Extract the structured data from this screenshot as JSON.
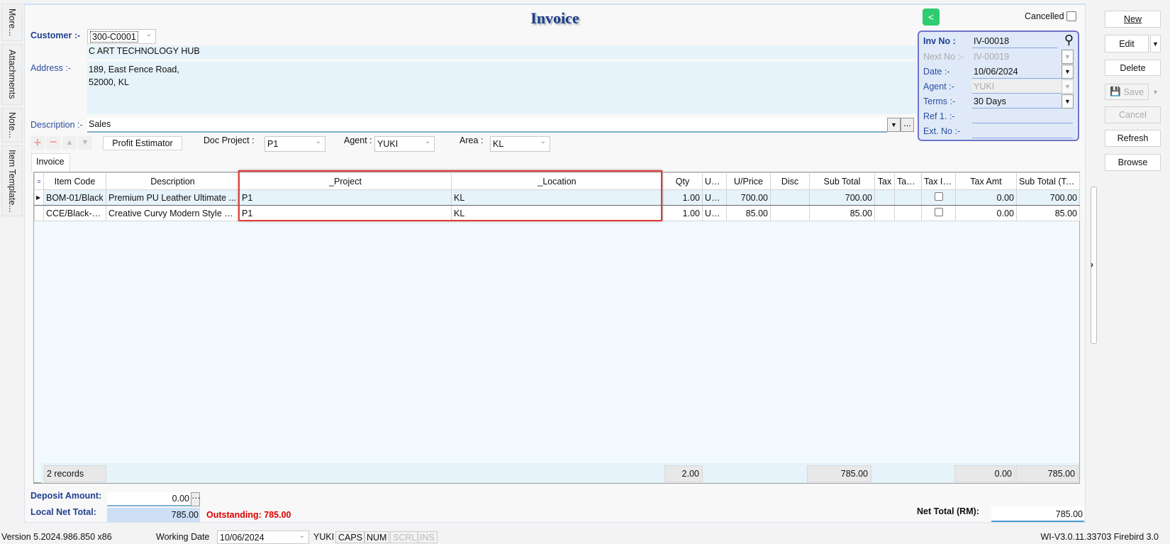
{
  "side_tabs": [
    "More...",
    "Attachments",
    "Note...",
    "Item Template..."
  ],
  "title": "Invoice",
  "customer": {
    "label": "Customer :-",
    "code": "300-C0001",
    "name": "C ART TECHNOLOGY HUB"
  },
  "address": {
    "label": "Address :-",
    "line1": "189, East Fence Road,",
    "line2": "52000, KL"
  },
  "description": {
    "label": "Description :-",
    "value": "Sales",
    "more": "..."
  },
  "toolbar": {
    "profit_estimator": "Profit Estimator",
    "doc_project_label": "Doc Project :",
    "doc_project": "P1",
    "agent_label": "Agent :",
    "agent": "YUKI",
    "area_label": "Area :",
    "area": "KL"
  },
  "tab": "Invoice",
  "cancelled_label": "Cancelled",
  "inv": {
    "inv_no_label": "Inv No :",
    "inv_no": "IV-00018",
    "next_no_label": "Next No :-",
    "next_no": "IV-00019",
    "date_label": "Date :-",
    "date": "10/06/2024",
    "agent_label": "Agent :-",
    "agent": "YUKI",
    "terms_label": "Terms :-",
    "terms": "30 Days",
    "ref_label": "Ref 1. :-",
    "ref": "",
    "ext_label": "Ext. No :-",
    "ext": ""
  },
  "actions": {
    "new": "New",
    "edit": "Edit",
    "delete": "Delete",
    "save": "Save",
    "cancel": "Cancel",
    "refresh": "Refresh",
    "browse": "Browse"
  },
  "grid": {
    "columns": [
      "Item Code",
      "Description",
      "_Project",
      "_Location",
      "Qty",
      "UO...",
      "U/Price",
      "Disc",
      "Sub Total",
      "Tax",
      "Tax ...",
      "Tax In...",
      "Tax Amt",
      "Sub Total (Tax)"
    ],
    "rows": [
      {
        "item_code": "BOM-01/Black",
        "description": "Premium PU Leather Ultimate ...",
        "project": "P1",
        "location": "KL",
        "qty": "1.00",
        "uom": "UNIT",
        "uprice": "700.00",
        "disc": "",
        "subtotal": "700.00",
        "tax": "",
        "tax2": "",
        "tax_inclusive": false,
        "tax_amt": "0.00",
        "subtotal_tax": "700.00"
      },
      {
        "item_code": "CCE/Black-C...",
        "description": "Creative Curvy Modern Style Ea...",
        "project": "P1",
        "location": "KL",
        "qty": "1.00",
        "uom": "UNIT",
        "uprice": "85.00",
        "disc": "",
        "subtotal": "85.00",
        "tax": "",
        "tax2": "",
        "tax_inclusive": false,
        "tax_amt": "0.00",
        "subtotal_tax": "85.00"
      }
    ],
    "footer": {
      "records": "2 records",
      "qty": "2.00",
      "subtotal": "785.00",
      "tax_amt": "0.00",
      "subtotal_tax": "785.00"
    }
  },
  "totals": {
    "deposit_label": "Deposit Amount:",
    "deposit": "0.00",
    "local_net_label": "Local Net Total:",
    "local_net": "785.00",
    "outstanding": "Outstanding: 785.00",
    "net_total_label": "Net Total (RM):",
    "net_total": "785.00"
  },
  "status": {
    "version": "Version 5.2024.986.850 x86",
    "working_date_label": "Working Date",
    "working_date": "10/06/2024",
    "user": "YUKI",
    "caps": "CAPS",
    "num": "NUM",
    "scrl": "SCRL",
    "ins": "INS",
    "db": "WI-V3.0.11.33703 Firebird 3.0"
  },
  "colors": {
    "label_blue": "#2a4fa0",
    "highlight_red": "#e53935",
    "outstanding_red": "#e00000",
    "share_green": "#2ecc71"
  }
}
